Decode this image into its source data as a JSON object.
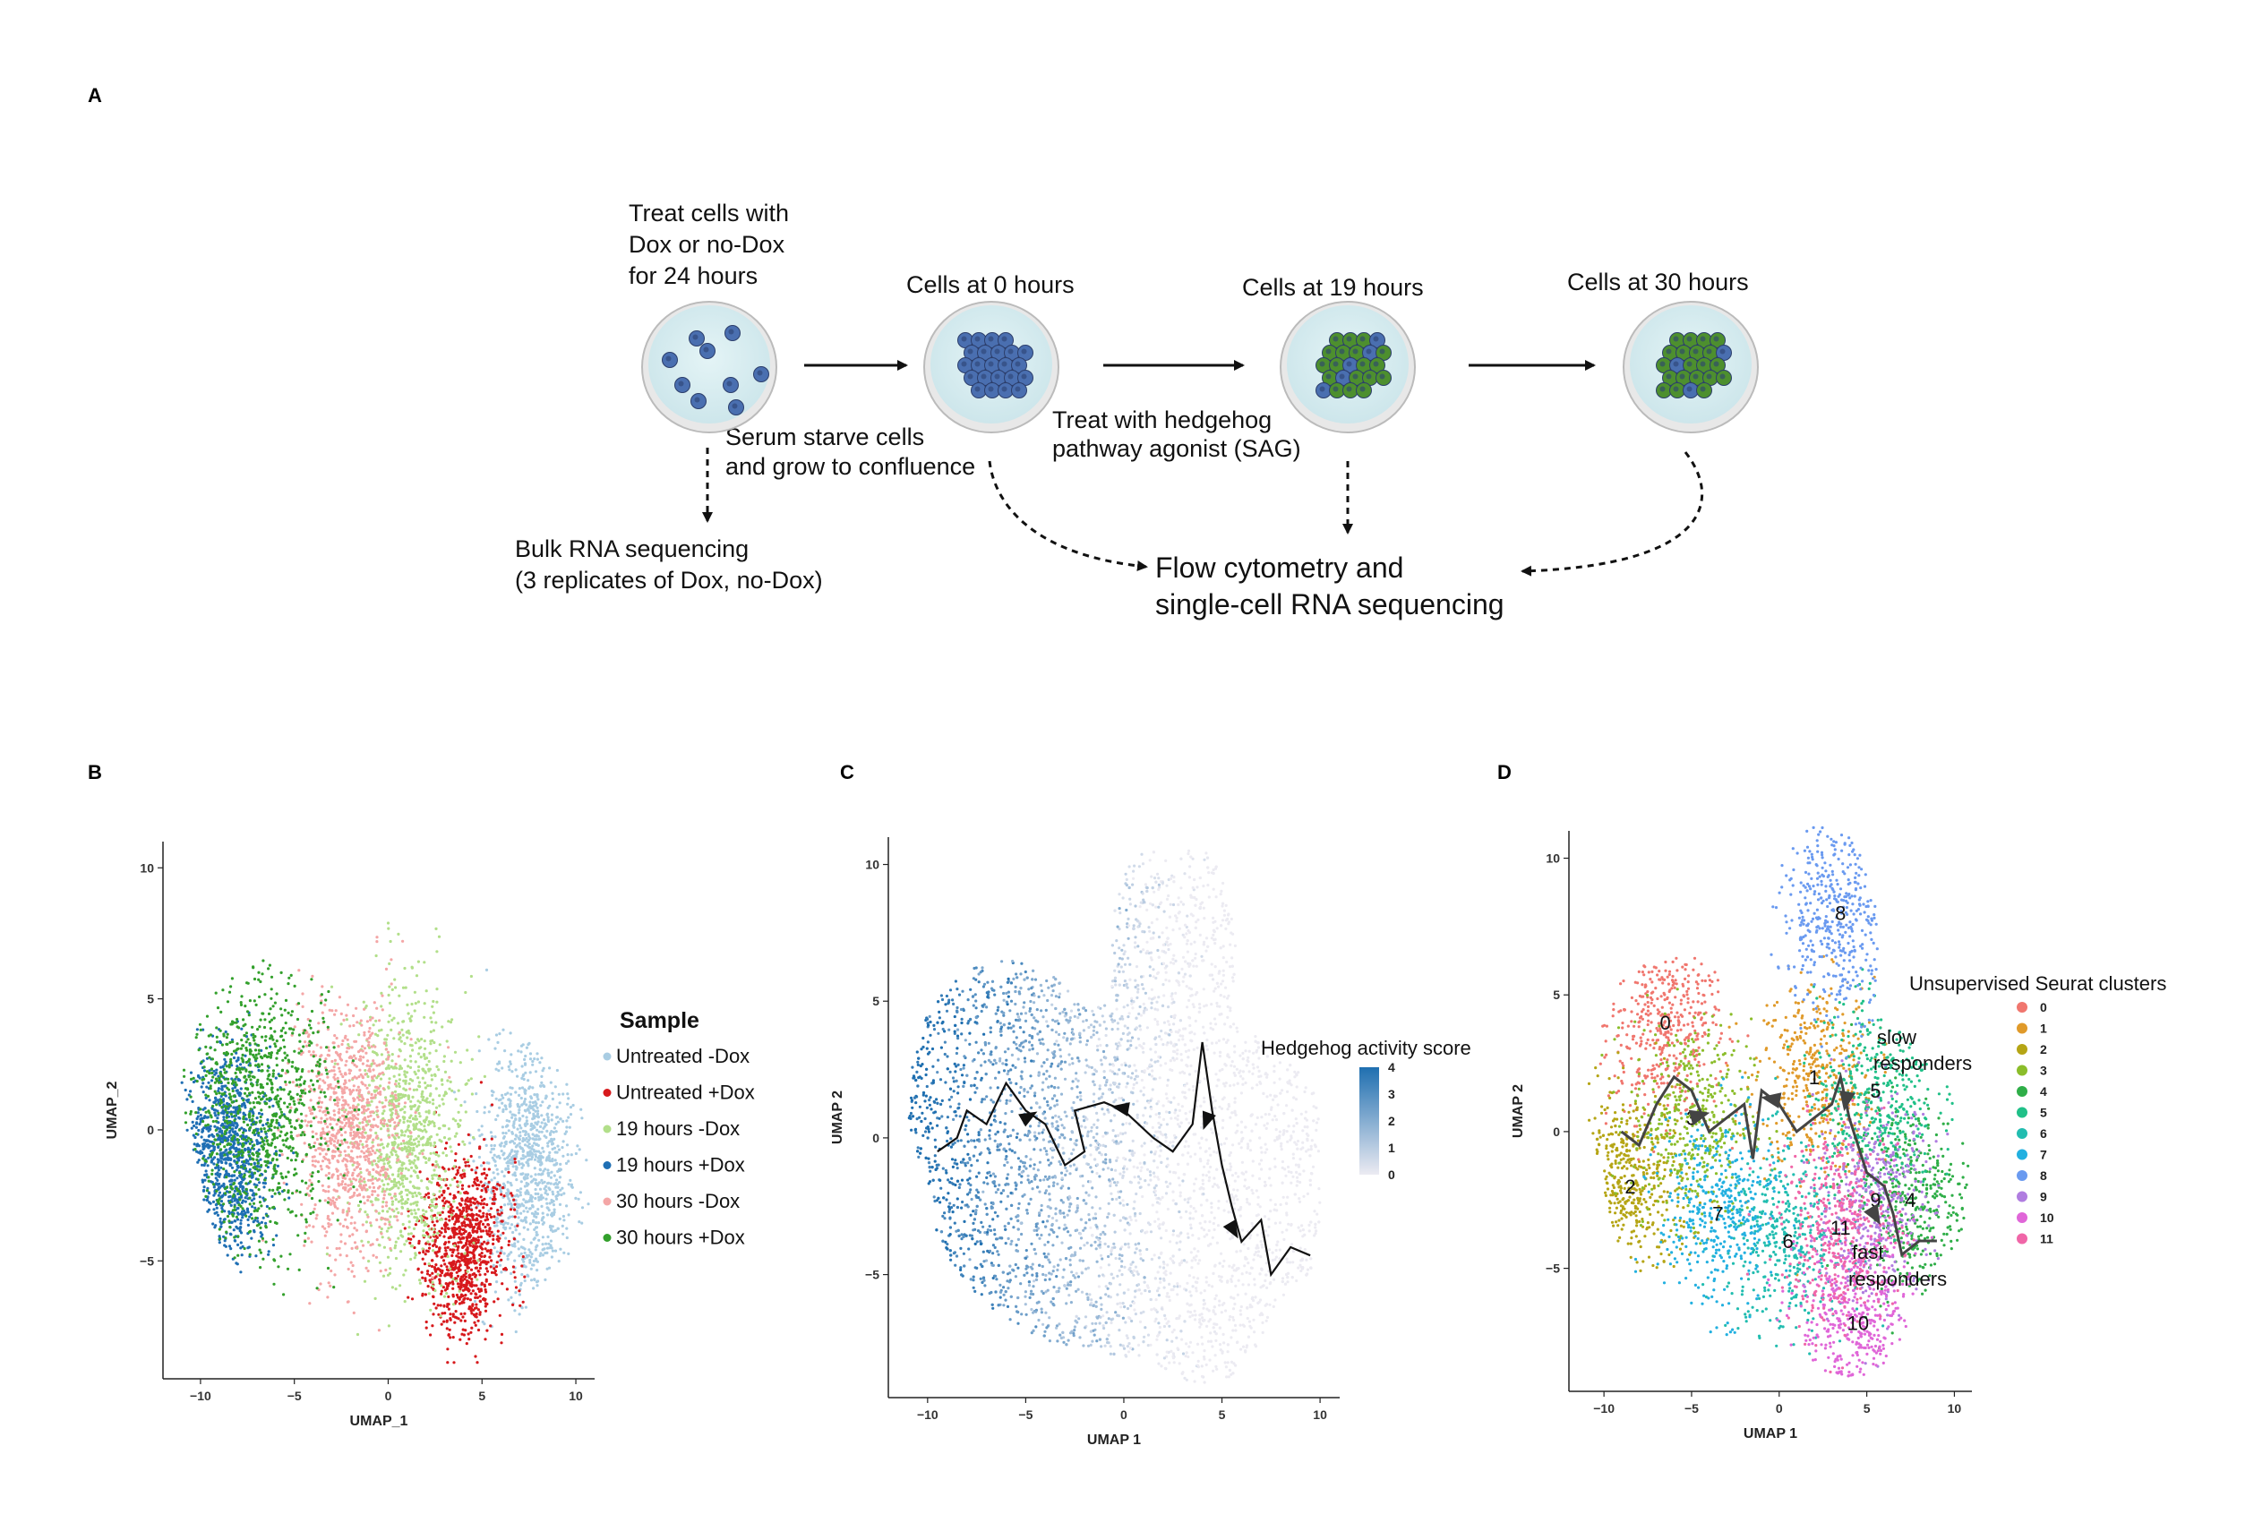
{
  "panels": {
    "a": "A",
    "b": "B",
    "c": "C",
    "d": "D"
  },
  "workflow": {
    "step1_lines": [
      "Treat cells with",
      "Dox or no-Dox",
      "for 24 hours"
    ],
    "step2": "Cells at 0 hours",
    "step3": "Cells at  19 hours",
    "step4": "Cells at 30 hours",
    "serum_lines": [
      "Serum starve cells",
      "and grow to confluence"
    ],
    "sag_lines": [
      "Treat with hedgehog",
      "pathway agonist (SAG)"
    ],
    "bulk_lines": [
      "Bulk RNA sequencing",
      "(3 replicates of Dox, no-Dox)"
    ],
    "flow_lines": [
      "Flow cytometry and",
      "single-cell RNA sequencing"
    ],
    "colors": {
      "dish_fill": "#d6eef2",
      "blue_cell": "#4a6fb0",
      "green_cell": "#4d8f2e",
      "arrow": "#111111"
    }
  },
  "chart_data": [
    {
      "panel": "B",
      "type": "scatter",
      "xlabel": "UMAP_1",
      "ylabel": "UMAP_2",
      "xticks": [
        -10,
        -5,
        0,
        5,
        10
      ],
      "yticks": [
        -5,
        0,
        5,
        10
      ],
      "legend_title": "Sample",
      "legend_position": "right",
      "series": [
        {
          "name": "Untreated -Dox",
          "color": "#a9cde3",
          "region": {
            "cx": 7.5,
            "cy": -1.5,
            "rx": 2.3,
            "ry": 4.5
          }
        },
        {
          "name": "Untreated +Dox",
          "color": "#d7191c",
          "region": {
            "cx": 4.0,
            "cy": -4.5,
            "rx": 2.0,
            "ry": 3.0
          }
        },
        {
          "name": "19 hours -Dox",
          "color": "#b2df8a",
          "region": {
            "cx": 1.0,
            "cy": 0.0,
            "rx": 2.5,
            "ry": 5.0
          }
        },
        {
          "name": "19 hours +Dox",
          "color": "#1f6fb4",
          "region": {
            "cx": -8.5,
            "cy": -1.0,
            "rx": 2.0,
            "ry": 3.5
          }
        },
        {
          "name": "30 hours -Dox",
          "color": "#f4a6a6",
          "region": {
            "cx": -2.0,
            "cy": 0.0,
            "rx": 2.5,
            "ry": 4.5
          }
        },
        {
          "name": "30 hours +Dox",
          "color": "#33a02c",
          "region": {
            "cx": -7.0,
            "cy": 1.0,
            "rx": 3.5,
            "ry": 5.0
          }
        }
      ],
      "xlim": [
        -12,
        11
      ],
      "ylim": [
        -9.5,
        11
      ]
    },
    {
      "panel": "C",
      "type": "scatter",
      "xlabel": "UMAP 1",
      "ylabel": "UMAP 2",
      "xticks": [
        -10,
        -5,
        0,
        5,
        10
      ],
      "yticks": [
        -5,
        0,
        5,
        10
      ],
      "color_scale": {
        "title": "Hedgehog activity score",
        "ticks": [
          0,
          1,
          2,
          3,
          4
        ],
        "low": "#ecebf2",
        "high": "#1f6fb0"
      },
      "xlim": [
        -12,
        11
      ],
      "ylim": [
        -9.5,
        11
      ]
    },
    {
      "panel": "D",
      "type": "scatter",
      "xlabel": "UMAP 1",
      "ylabel": "UMAP 2",
      "xticks": [
        -10,
        -5,
        0,
        5,
        10
      ],
      "yticks": [
        -5,
        0,
        5,
        10
      ],
      "legend_title": "Unsupervised Seurat clusters",
      "legend_position": "right",
      "series": [
        {
          "name": "0",
          "color": "#f0766e",
          "center": [
            -6.5,
            4.0
          ]
        },
        {
          "name": "1",
          "color": "#e09a2a",
          "center": [
            2.0,
            2.0
          ]
        },
        {
          "name": "2",
          "color": "#b5a515",
          "center": [
            -8.5,
            -2.0
          ]
        },
        {
          "name": "3",
          "color": "#8bbd2a",
          "center": [
            -5.0,
            0.5
          ]
        },
        {
          "name": "4",
          "color": "#2fae48",
          "center": [
            7.5,
            -2.5
          ]
        },
        {
          "name": "5",
          "color": "#20c088",
          "center": [
            5.5,
            1.5
          ]
        },
        {
          "name": "6",
          "color": "#22bdb0",
          "center": [
            0.5,
            -4.0
          ]
        },
        {
          "name": "7",
          "color": "#22b0e0",
          "center": [
            -3.5,
            -3.0
          ]
        },
        {
          "name": "8",
          "color": "#6a9af0",
          "center": [
            3.5,
            8.0
          ]
        },
        {
          "name": "9",
          "color": "#b07de0",
          "center": [
            5.5,
            -2.5
          ]
        },
        {
          "name": "10",
          "color": "#e066d8",
          "center": [
            4.5,
            -7.0
          ]
        },
        {
          "name": "11",
          "color": "#f066a8",
          "center": [
            3.5,
            -3.5
          ]
        }
      ],
      "annotations": [
        "slow",
        "responders",
        "fast",
        "responders"
      ],
      "xlim": [
        -12,
        11
      ],
      "ylim": [
        -9.5,
        11
      ]
    }
  ]
}
